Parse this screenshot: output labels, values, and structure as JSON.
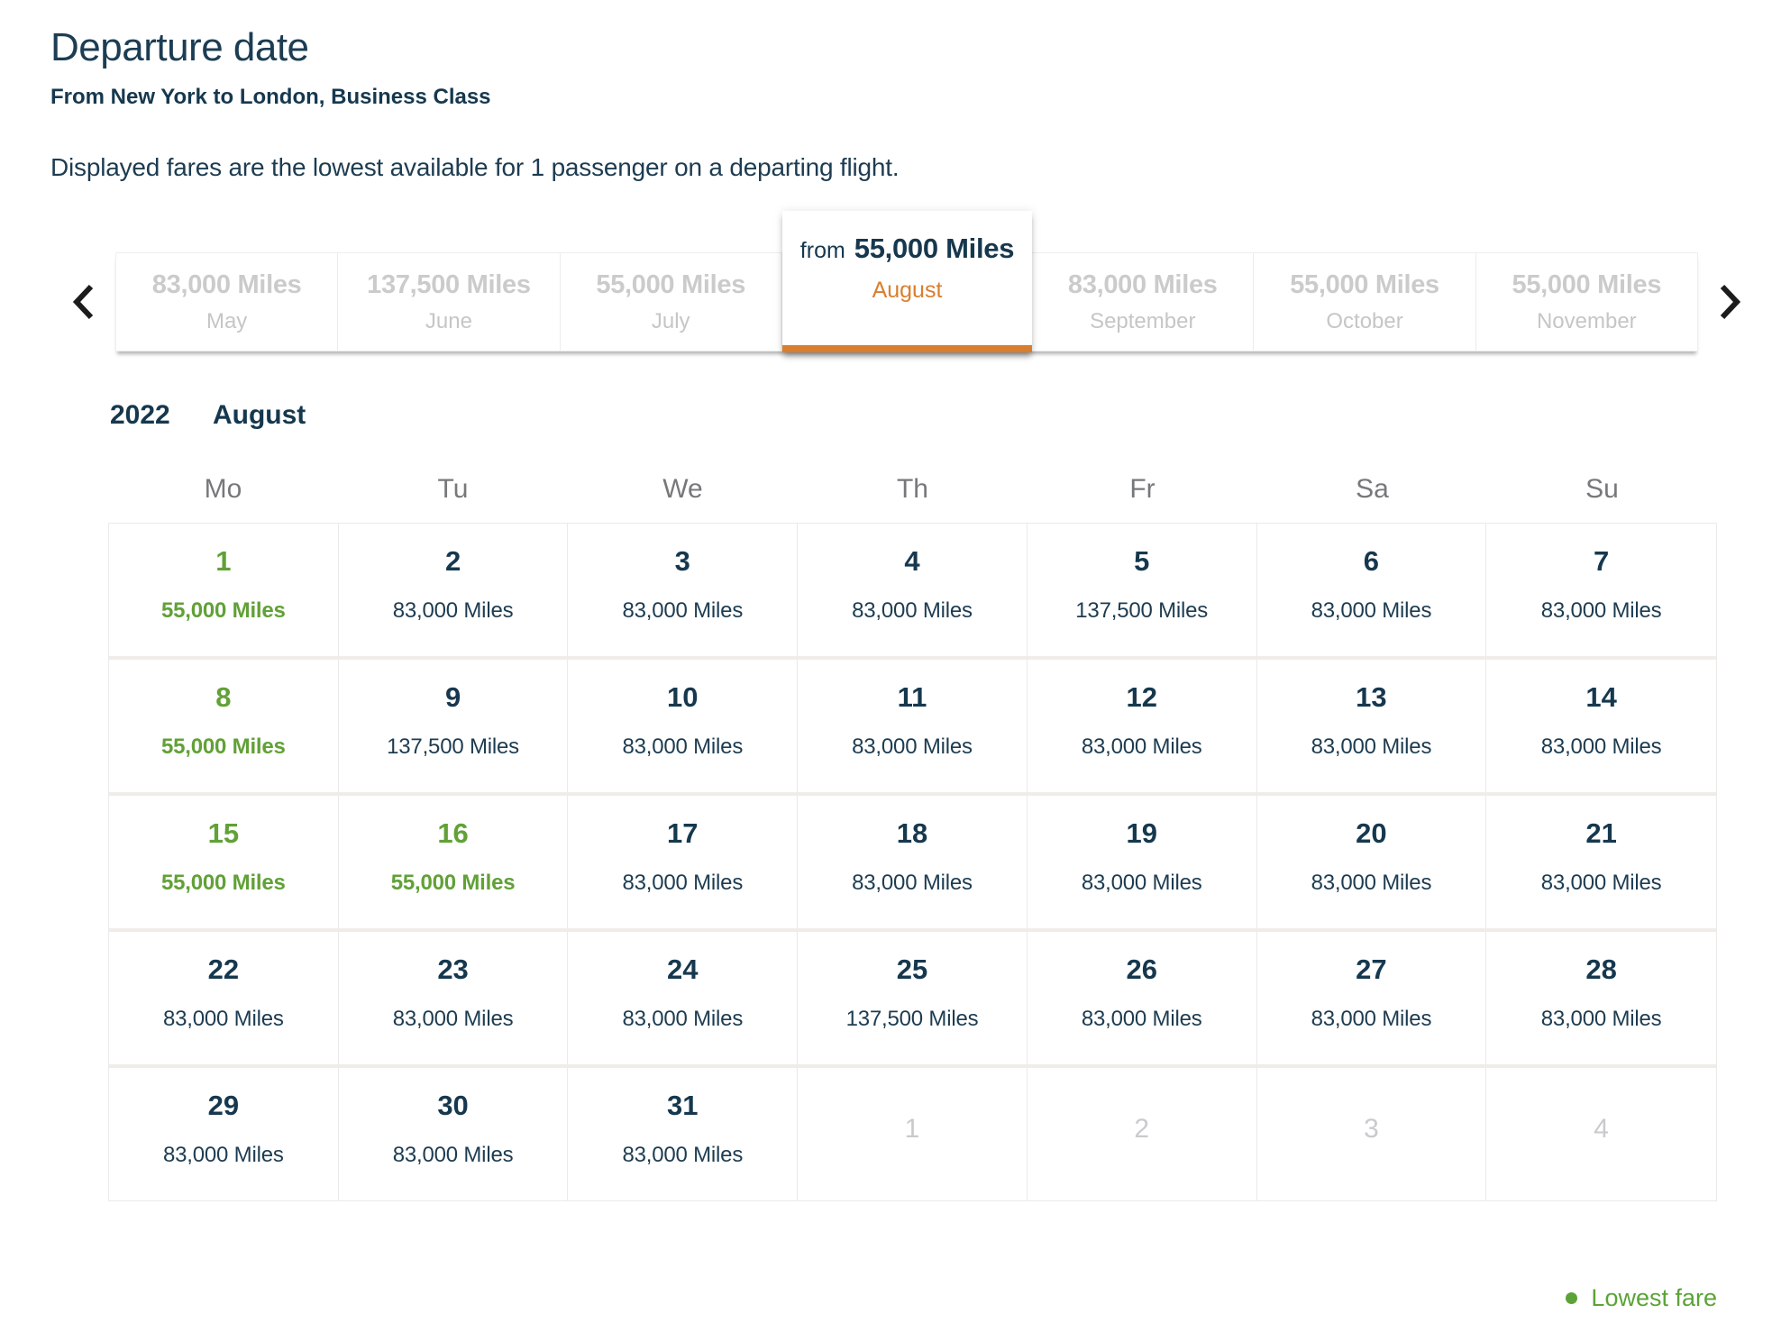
{
  "page": {
    "title": "Departure date",
    "subtitle": "From New York to London, Business Class",
    "description": "Displayed fares are the lowest available for 1 passenger on a departing flight."
  },
  "colors": {
    "navy_text": "#16384e",
    "lowest_fare_green": "#61a137",
    "selected_accent_orange": "#d97e2e",
    "inactive_tab_gray": "#cbcbcb"
  },
  "carousel": {
    "prev_icon": "chevron-left-icon",
    "next_icon": "chevron-right-icon",
    "tabs": [
      {
        "miles": "83,000 Miles",
        "month": "May",
        "selected": false
      },
      {
        "miles": "137,500 Miles",
        "month": "June",
        "selected": false
      },
      {
        "miles": "55,000 Miles",
        "month": "July",
        "selected": false
      },
      {
        "from_label": "from",
        "miles": "55,000 Miles",
        "month": "August",
        "selected": true
      },
      {
        "miles": "83,000 Miles",
        "month": "September",
        "selected": false
      },
      {
        "miles": "55,000 Miles",
        "month": "October",
        "selected": false
      },
      {
        "miles": "55,000 Miles",
        "month": "November",
        "selected": false
      }
    ]
  },
  "calendar": {
    "year": "2022",
    "month": "August",
    "day_headers": [
      "Mo",
      "Tu",
      "We",
      "Th",
      "Fr",
      "Sa",
      "Su"
    ],
    "weeks": [
      [
        {
          "day": "1",
          "fare": "55,000 Miles",
          "type": "lowest"
        },
        {
          "day": "2",
          "fare": "83,000 Miles",
          "type": "regular"
        },
        {
          "day": "3",
          "fare": "83,000 Miles",
          "type": "regular"
        },
        {
          "day": "4",
          "fare": "83,000 Miles",
          "type": "regular"
        },
        {
          "day": "5",
          "fare": "137,500 Miles",
          "type": "regular"
        },
        {
          "day": "6",
          "fare": "83,000 Miles",
          "type": "regular"
        },
        {
          "day": "7",
          "fare": "83,000 Miles",
          "type": "regular"
        }
      ],
      [
        {
          "day": "8",
          "fare": "55,000 Miles",
          "type": "lowest"
        },
        {
          "day": "9",
          "fare": "137,500 Miles",
          "type": "regular"
        },
        {
          "day": "10",
          "fare": "83,000 Miles",
          "type": "regular"
        },
        {
          "day": "11",
          "fare": "83,000 Miles",
          "type": "regular"
        },
        {
          "day": "12",
          "fare": "83,000 Miles",
          "type": "regular"
        },
        {
          "day": "13",
          "fare": "83,000 Miles",
          "type": "regular"
        },
        {
          "day": "14",
          "fare": "83,000 Miles",
          "type": "regular"
        }
      ],
      [
        {
          "day": "15",
          "fare": "55,000 Miles",
          "type": "lowest"
        },
        {
          "day": "16",
          "fare": "55,000 Miles",
          "type": "lowest"
        },
        {
          "day": "17",
          "fare": "83,000 Miles",
          "type": "regular"
        },
        {
          "day": "18",
          "fare": "83,000 Miles",
          "type": "regular"
        },
        {
          "day": "19",
          "fare": "83,000 Miles",
          "type": "regular"
        },
        {
          "day": "20",
          "fare": "83,000 Miles",
          "type": "regular"
        },
        {
          "day": "21",
          "fare": "83,000 Miles",
          "type": "regular"
        }
      ],
      [
        {
          "day": "22",
          "fare": "83,000 Miles",
          "type": "regular"
        },
        {
          "day": "23",
          "fare": "83,000 Miles",
          "type": "regular"
        },
        {
          "day": "24",
          "fare": "83,000 Miles",
          "type": "regular"
        },
        {
          "day": "25",
          "fare": "137,500 Miles",
          "type": "regular"
        },
        {
          "day": "26",
          "fare": "83,000 Miles",
          "type": "regular"
        },
        {
          "day": "27",
          "fare": "83,000 Miles",
          "type": "regular"
        },
        {
          "day": "28",
          "fare": "83,000 Miles",
          "type": "regular"
        }
      ],
      [
        {
          "day": "29",
          "fare": "83,000 Miles",
          "type": "regular"
        },
        {
          "day": "30",
          "fare": "83,000 Miles",
          "type": "regular"
        },
        {
          "day": "31",
          "fare": "83,000 Miles",
          "type": "regular"
        },
        {
          "day": "1",
          "fare": "",
          "type": "next"
        },
        {
          "day": "2",
          "fare": "",
          "type": "next"
        },
        {
          "day": "3",
          "fare": "",
          "type": "next"
        },
        {
          "day": "4",
          "fare": "",
          "type": "next"
        }
      ]
    ]
  },
  "legend": {
    "label": "Lowest fare"
  }
}
